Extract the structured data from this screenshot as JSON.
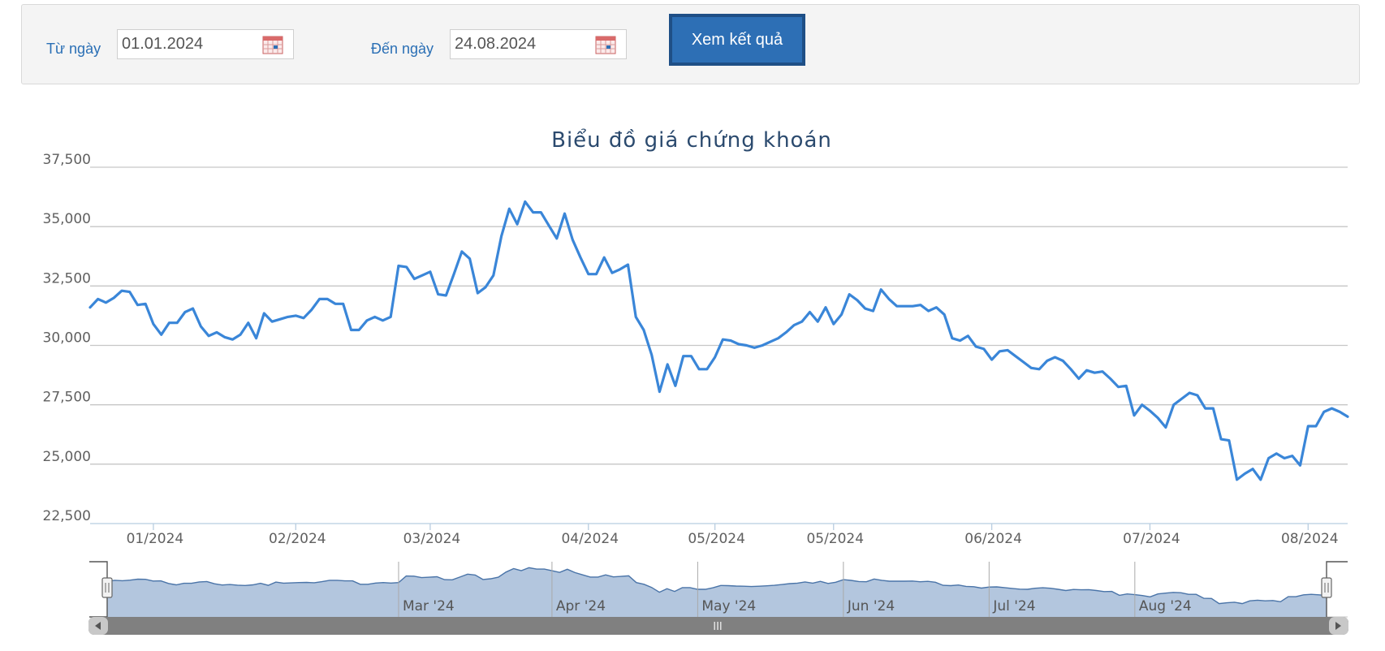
{
  "filter": {
    "from_label": "Từ ngày",
    "from_value": "01.01.2024",
    "to_label": "Đến ngày",
    "to_value": "24.08.2024",
    "submit_label": "Xem kết quả",
    "calendar_icon": "calendar-icon"
  },
  "colors": {
    "line": "#3a86d8",
    "navigator_fill": "#b3c6de",
    "navigator_line": "#4a74a8",
    "grid": "#c6c6c6",
    "scrollbar": "#808080",
    "title": "#2b4a6e",
    "label_blue": "#2a6fb5"
  },
  "chart_data": {
    "type": "line",
    "title": "Biểu đồ giá chứng khoán",
    "ylim": [
      22500,
      37500
    ],
    "yticks": [
      "37,500",
      "35,000",
      "32,500",
      "30,000",
      "27,500",
      "25,000",
      "22,500"
    ],
    "grid": true,
    "xticks": [
      {
        "label": "01/2024",
        "index": 8
      },
      {
        "label": "02/2024",
        "index": 26
      },
      {
        "label": "03/2024",
        "index": 43
      },
      {
        "label": "04/2024",
        "index": 63
      },
      {
        "label": "05/2024",
        "index": 79
      },
      {
        "label": "05/2024",
        "index": 94
      },
      {
        "label": "06/2024",
        "index": 114
      },
      {
        "label": "07/2024",
        "index": 134
      },
      {
        "label": "08/2024",
        "index": 154
      }
    ],
    "navigator": {
      "labels": [
        {
          "label": "Mar '24",
          "index": 38
        },
        {
          "label": "Apr '24",
          "index": 58
        },
        {
          "label": "May '24",
          "index": 77
        },
        {
          "label": "Jun '24",
          "index": 96
        },
        {
          "label": "Jul '24",
          "index": 115
        },
        {
          "label": "Aug '24",
          "index": 134
        }
      ],
      "scroll_grip": "III"
    },
    "series": [
      {
        "values": [
          31600,
          31950,
          31800,
          32000,
          32300,
          32250,
          31700,
          31750,
          30900,
          30450,
          30950,
          30950,
          31400,
          31550,
          30800,
          30400,
          30550,
          30350,
          30250,
          30450,
          30950,
          30300,
          31350,
          31000,
          31100,
          31200,
          31250,
          31150,
          31500,
          31950,
          31950,
          31750,
          31750,
          30650,
          30650,
          31050,
          31200,
          31050,
          31200,
          33350,
          33300,
          32800,
          32950,
          33100,
          32150,
          32100,
          33000,
          33950,
          33650,
          32200,
          32450,
          32950,
          34600,
          35750,
          35100,
          36050,
          35600,
          35600,
          35050,
          34500,
          35550,
          34450,
          33700,
          33000,
          33000,
          33700,
          33050,
          33200,
          33400,
          31200,
          30650,
          29600,
          28050,
          29200,
          28300,
          29550,
          29550,
          29000,
          29000,
          29500,
          30250,
          30200,
          30050,
          30000,
          29900,
          30000,
          30150,
          30300,
          30550,
          30850,
          31000,
          31400,
          31000,
          31600,
          30900,
          31300,
          32150,
          31900,
          31550,
          31450,
          32350,
          31950,
          31650,
          31650,
          31650,
          31700,
          31450,
          31600,
          31300,
          30300,
          30200,
          30400,
          29950,
          29850,
          29400,
          29750,
          29800,
          29550,
          29300,
          29050,
          29000,
          29350,
          29500,
          29350,
          29000,
          28600,
          28950,
          28850,
          28900,
          28600,
          28250,
          28300,
          27050,
          27500,
          27250,
          26950,
          26550,
          27500,
          27750,
          28000,
          27900,
          27350,
          27350,
          26050,
          26000,
          24350,
          24600,
          24800,
          24350,
          25250,
          25450,
          25250,
          25350,
          24950,
          26600,
          26600,
          27200,
          27350,
          27200,
          27000
        ]
      }
    ]
  }
}
